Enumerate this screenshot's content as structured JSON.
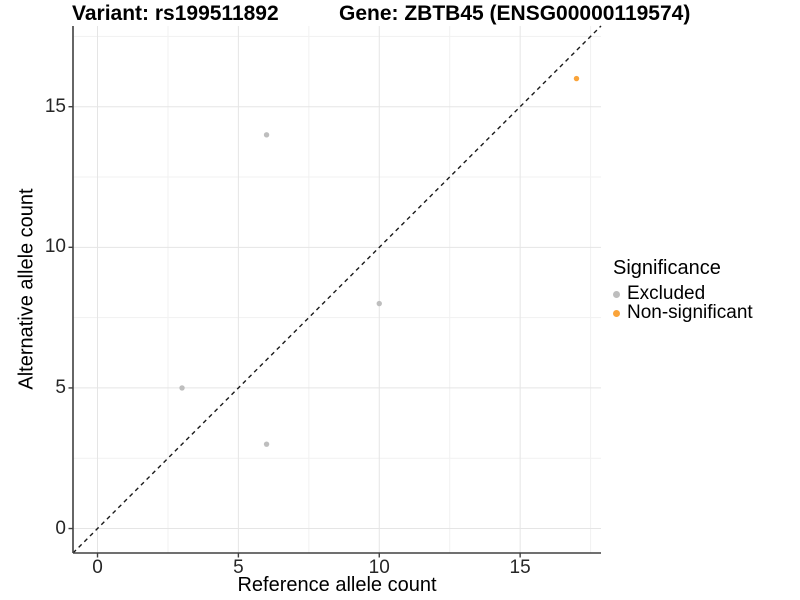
{
  "header": {
    "variant_title": "Variant: rs199511892",
    "gene_title": "Gene: ZBTB45 (ENSG00000119574)"
  },
  "axes": {
    "x_label": "Reference allele count",
    "y_label": "Alternative allele count"
  },
  "legend": {
    "title": "Significance",
    "items": [
      {
        "label": "Excluded",
        "color": "#BEBEBE"
      },
      {
        "label": "Non-significant",
        "color": "#FAA43A"
      }
    ]
  },
  "chart_data": {
    "type": "scatter",
    "title": "Variant: rs199511892  Gene: ZBTB45 (ENSG00000119574)",
    "xlabel": "Reference allele count",
    "ylabel": "Alternative allele count",
    "x_range": [
      -0.87,
      17.87
    ],
    "y_range": [
      -0.87,
      17.87
    ],
    "x_ticks_major": [
      0,
      5,
      10,
      15
    ],
    "x_ticks_minor": [
      2.5,
      7.5,
      12.5,
      17.5
    ],
    "y_ticks_major": [
      0,
      5,
      10,
      15
    ],
    "y_ticks_minor": [
      2.5,
      7.5,
      12.5,
      17.5
    ],
    "grid": "major+minor",
    "legend_position": "right",
    "reference_line": {
      "slope": 1,
      "intercept": 0,
      "style": "dashed",
      "color": "#1a1a1a"
    },
    "series": [
      {
        "name": "Excluded",
        "color": "#BEBEBE",
        "points": [
          [
            6,
            14
          ],
          [
            10,
            8
          ],
          [
            3,
            5
          ],
          [
            6,
            3
          ]
        ]
      },
      {
        "name": "Non-significant",
        "color": "#FAA43A",
        "points": [
          [
            17,
            16
          ]
        ]
      }
    ],
    "colors": {
      "axis_line": "#404040",
      "grid_major": "#E5E5E5",
      "grid_minor": "#F1F1F1",
      "background": "#FFFFFF"
    }
  }
}
